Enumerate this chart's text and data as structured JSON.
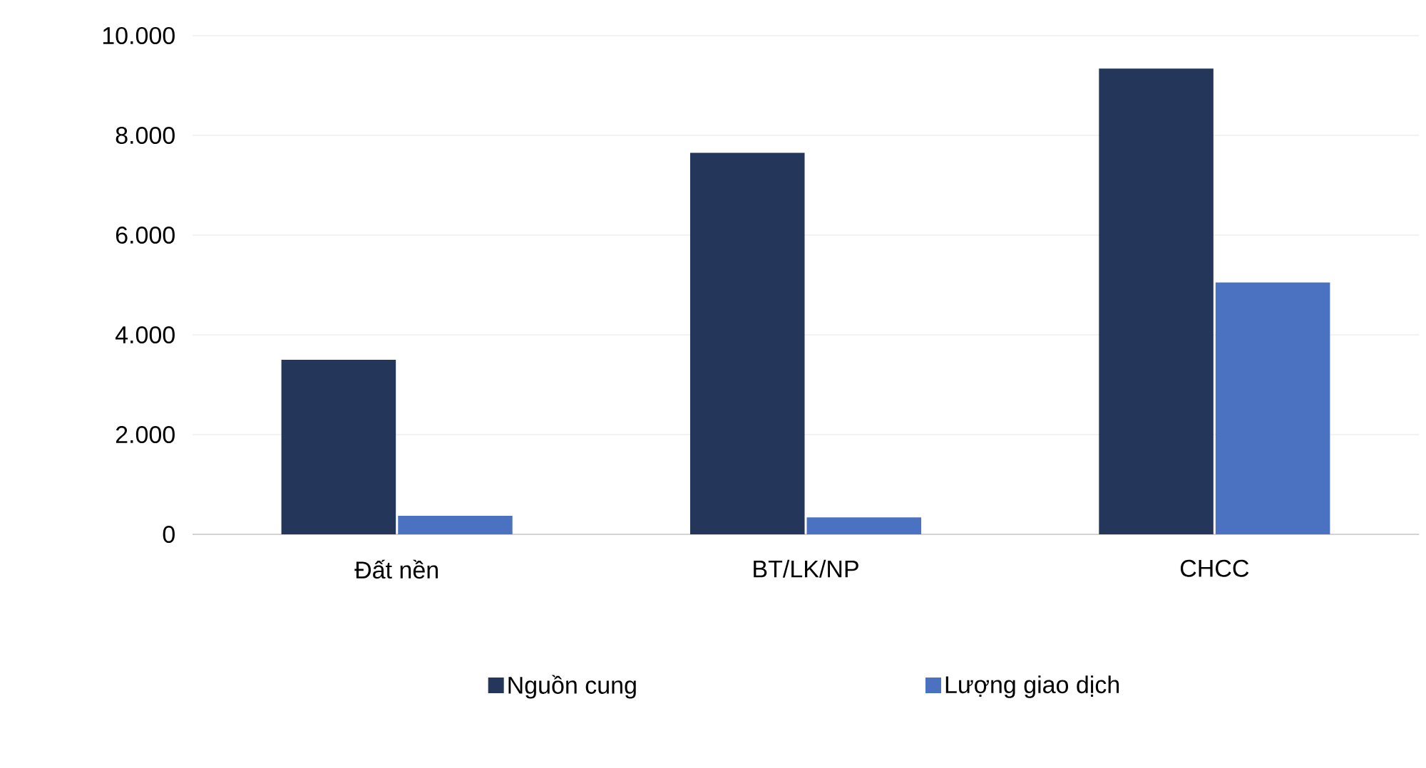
{
  "chart_data": {
    "type": "bar",
    "categories": [
      "Đất nền",
      "BT/LK/NP",
      "CHCC"
    ],
    "series": [
      {
        "name": "Nguồn cung",
        "color": "#243659",
        "values": [
          3500,
          7650,
          9340
        ]
      },
      {
        "name": "Lượng giao dịch",
        "color": "#4a72c0",
        "values": [
          370,
          340,
          5050
        ]
      }
    ],
    "ylim": [
      0,
      10000
    ],
    "yticks": [
      0,
      {
        "value": 2000,
        "label": "2.000"
      },
      {
        "value": 4000,
        "label": "4.000"
      },
      {
        "value": 6000,
        "label": "6.000"
      },
      {
        "value": 8000,
        "label": "8.000"
      },
      {
        "value": 10000,
        "label": "10.000"
      }
    ],
    "grid": "y",
    "legend": "bottom"
  }
}
